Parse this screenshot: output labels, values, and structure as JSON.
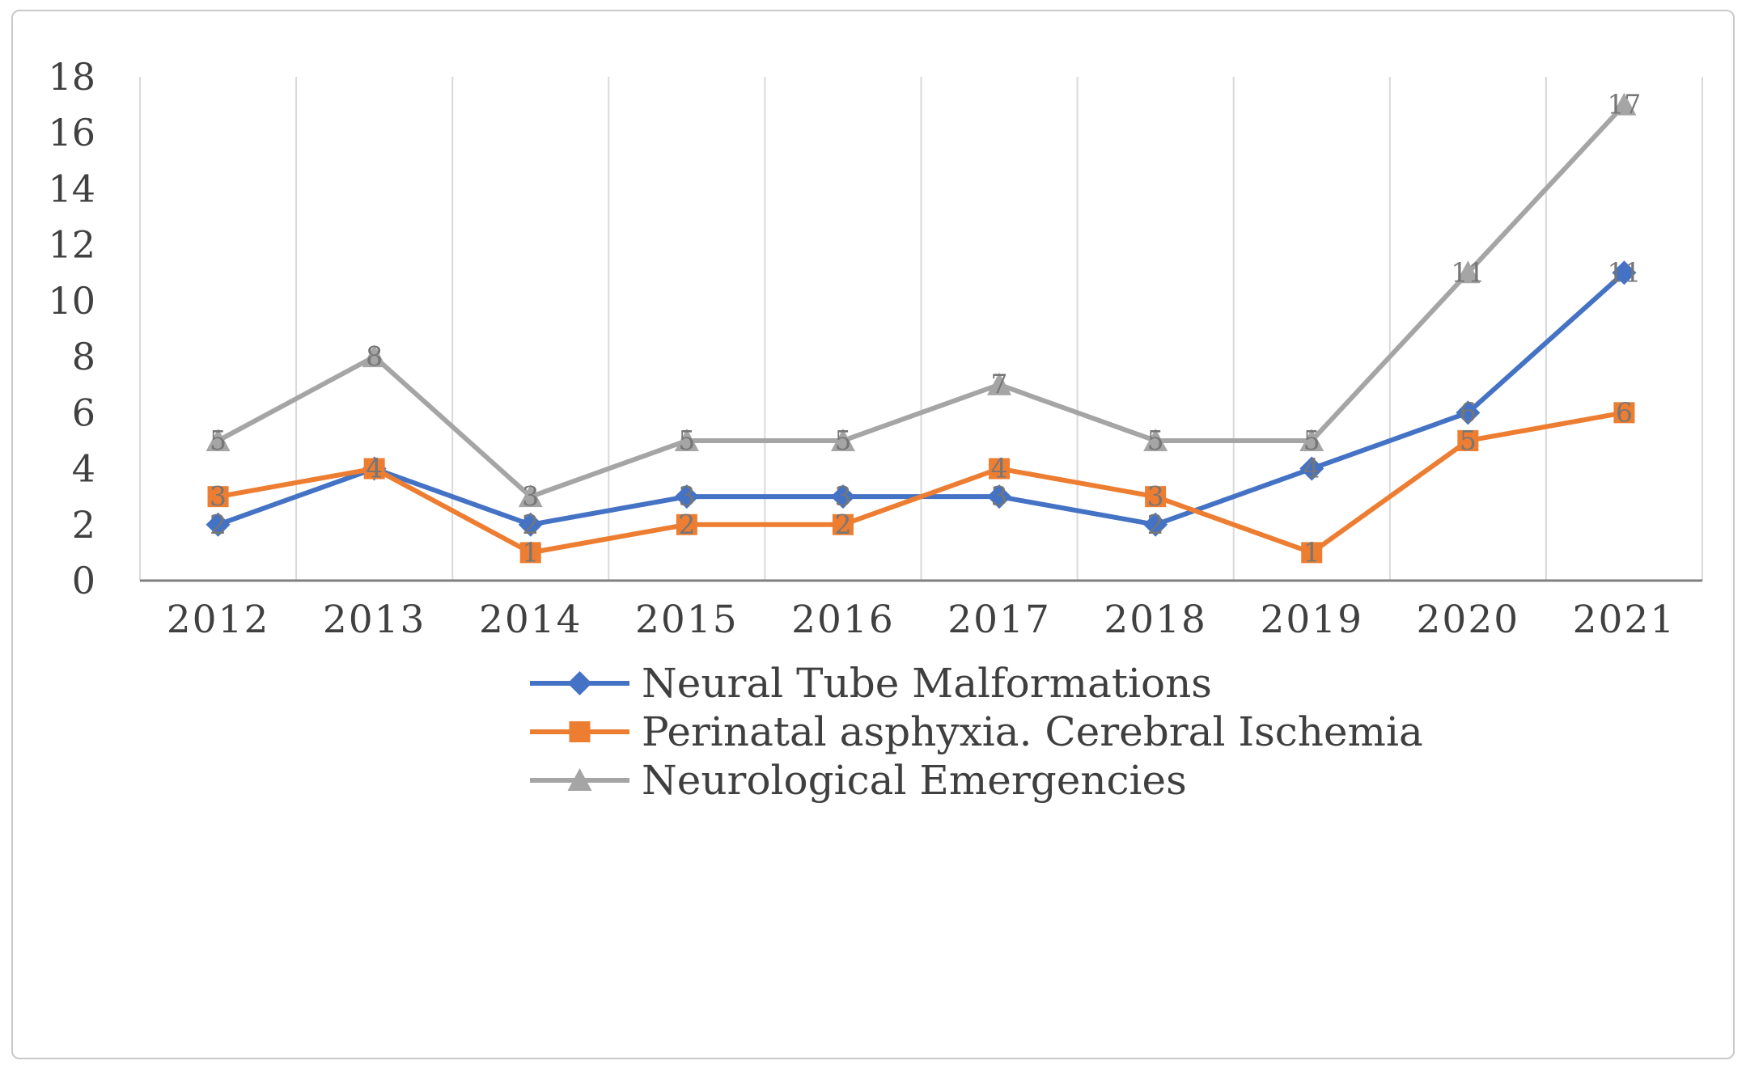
{
  "chart_data": {
    "type": "line",
    "title": "",
    "xlabel": "",
    "ylabel": "",
    "categories": [
      "2012",
      "2013",
      "2014",
      "2015",
      "2016",
      "2017",
      "2018",
      "2019",
      "2020",
      "2021"
    ],
    "series": [
      {
        "name": "Neural Tube Malformations",
        "color": "#4472C4",
        "marker": "diamond",
        "values": [
          2,
          4,
          2,
          3,
          3,
          3,
          2,
          4,
          6,
          11
        ]
      },
      {
        "name": "Perinatal asphyxia. Cerebral Ischemia",
        "color": "#ED7D31",
        "marker": "square",
        "values": [
          3,
          4,
          1,
          2,
          2,
          4,
          3,
          1,
          5,
          6
        ]
      },
      {
        "name": "Neurological Emergencies",
        "color": "#A5A5A5",
        "marker": "triangle",
        "values": [
          5,
          8,
          3,
          5,
          5,
          7,
          5,
          5,
          11,
          17
        ]
      }
    ],
    "y_axis": {
      "min": 0,
      "max": 18,
      "step": 2,
      "tick_labels": [
        "0",
        "2",
        "4",
        "6",
        "8",
        "10",
        "12",
        "14",
        "16",
        "18"
      ]
    },
    "grid": "vertical",
    "legend_position": "bottom",
    "data_labels": true,
    "colors": {
      "gridline": "#D9D9D9",
      "axis_line": "#7F7F7F",
      "tick_text": "#404040",
      "data_label_text": "#767676",
      "legend_text": "#3F3F3F",
      "border": "#C9C9C9"
    }
  }
}
